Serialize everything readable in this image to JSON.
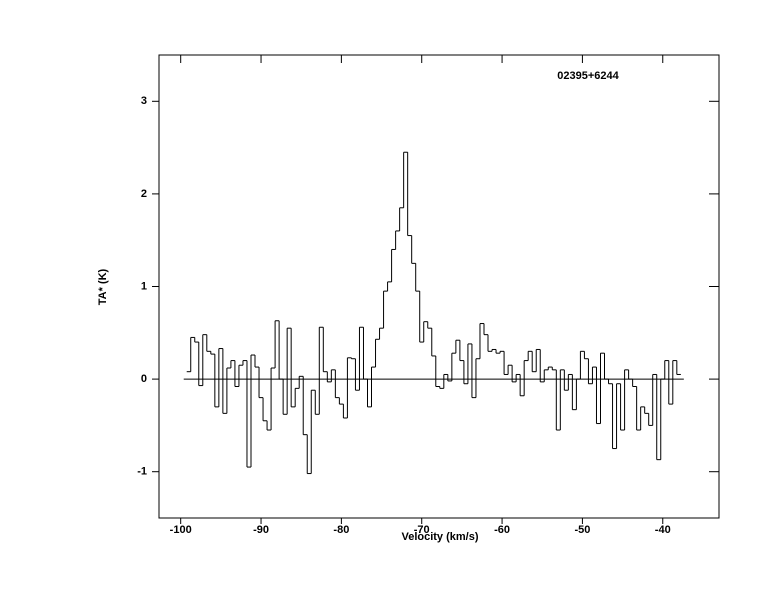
{
  "chart_data": {
    "type": "step",
    "title": "02395+6244",
    "xlabel": "Velocity (km/s)",
    "ylabel": "TA* (K)",
    "xlim": [
      -102.7,
      -33.0
    ],
    "ylim": [
      -1.5,
      3.5
    ],
    "xticks": [
      -100,
      -90,
      -80,
      -70,
      -60,
      -50,
      -40
    ],
    "yticks": [
      -1,
      0,
      1,
      2,
      3
    ],
    "color": "#000000",
    "x": [
      -99,
      -98.5,
      -98,
      -97.5,
      -97,
      -96.5,
      -96,
      -95.5,
      -95,
      -94.5,
      -94,
      -93.5,
      -93,
      -92.5,
      -92,
      -91.5,
      -91,
      -90.5,
      -90,
      -89.5,
      -89,
      -88.5,
      -88,
      -87.5,
      -87,
      -86.5,
      -86,
      -85.5,
      -85,
      -84.5,
      -84,
      -83.5,
      -83,
      -82.5,
      -82,
      -81.5,
      -81,
      -80.5,
      -80,
      -79.5,
      -79,
      -78.5,
      -78,
      -77.5,
      -77,
      -76.5,
      -76,
      -75.5,
      -75,
      -74.5,
      -74,
      -73.5,
      -73,
      -72.5,
      -72,
      -71.5,
      -71,
      -70.5,
      -70,
      -69.5,
      -69,
      -68.5,
      -68,
      -67.5,
      -67,
      -66.5,
      -66,
      -65.5,
      -65,
      -64.5,
      -64,
      -63.5,
      -63,
      -62.5,
      -62,
      -61.5,
      -61,
      -60.5,
      -60,
      -59.5,
      -59,
      -58.5,
      -58,
      -57.5,
      -57,
      -56.5,
      -56,
      -55.5,
      -55,
      -54.5,
      -54,
      -53.5,
      -53,
      -52.5,
      -52,
      -51.5,
      -51,
      -50.5,
      -50,
      -49.5,
      -49,
      -48.5,
      -48,
      -47.5,
      -47,
      -46.5,
      -46,
      -45.5,
      -45,
      -44.5,
      -44,
      -43.5,
      -43,
      -42.5,
      -42,
      -41.5,
      -41,
      -40.5,
      -40,
      -39.5,
      -39,
      -38.5,
      -38
    ],
    "values": [
      0.08,
      0.45,
      0.4,
      -0.07,
      0.48,
      0.3,
      0.27,
      -0.3,
      0.33,
      -0.37,
      0.12,
      0.2,
      -0.08,
      0.15,
      0.2,
      -0.95,
      0.26,
      0.13,
      -0.2,
      -0.45,
      -0.55,
      0.12,
      0.63,
      0.0,
      -0.38,
      0.55,
      -0.3,
      -0.1,
      0.03,
      -0.6,
      -1.02,
      -0.12,
      -0.38,
      0.56,
      0.08,
      -0.03,
      0.1,
      -0.2,
      -0.27,
      -0.42,
      0.23,
      0.22,
      -0.12,
      0.56,
      0.0,
      -0.3,
      0.13,
      0.43,
      0.55,
      0.95,
      1.05,
      1.4,
      1.6,
      1.85,
      2.45,
      1.55,
      1.25,
      0.95,
      0.4,
      0.62,
      0.55,
      0.25,
      -0.08,
      -0.1,
      0.05,
      -0.02,
      0.28,
      0.42,
      0.2,
      -0.05,
      0.38,
      -0.2,
      0.22,
      0.6,
      0.48,
      0.3,
      0.32,
      0.28,
      0.3,
      0.05,
      0.15,
      -0.03,
      0.05,
      -0.18,
      0.2,
      0.3,
      0.08,
      0.32,
      -0.03,
      0.1,
      0.13,
      0.1,
      -0.55,
      0.1,
      -0.12,
      0.05,
      -0.33,
      0.0,
      0.3,
      0.22,
      -0.05,
      0.13,
      -0.48,
      0.28,
      0.0,
      -0.05,
      -0.75,
      -0.05,
      -0.55,
      0.1,
      0.0,
      -0.08,
      -0.55,
      -0.3,
      -0.37,
      -0.5,
      0.05,
      -0.87,
      0.0,
      0.2,
      -0.27,
      0.2,
      0.05
    ]
  }
}
